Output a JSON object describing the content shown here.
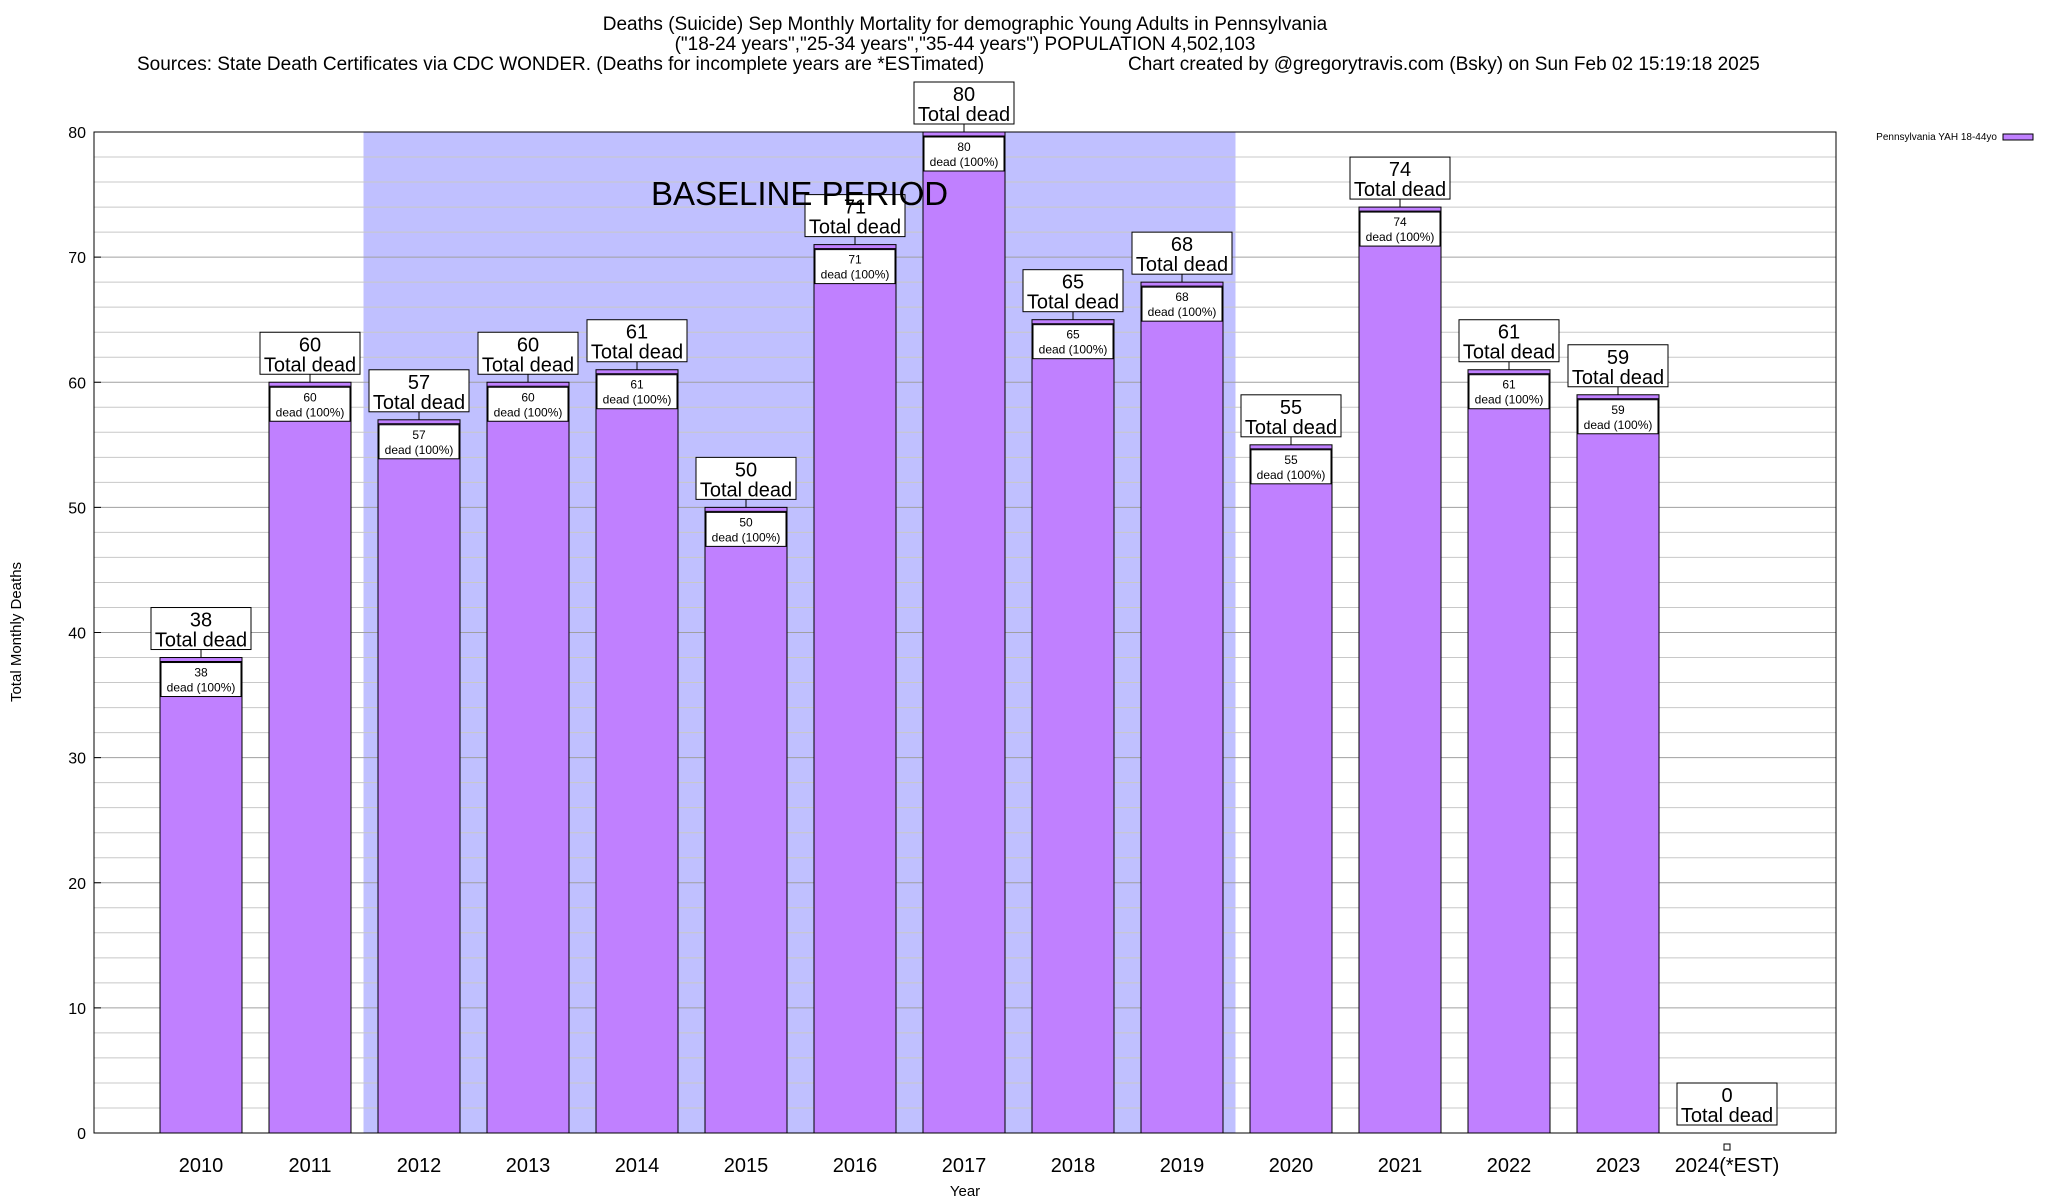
{
  "title": {
    "line1": "Deaths (Suicide) Sep Monthly Mortality for demographic Young Adults in Pennsylvania",
    "line2": "(\"18-24 years\",\"25-34 years\",\"35-44 years\") POPULATION 4,502,103",
    "line3": "Sources: State Death Certificates via CDC WONDER. (Deaths for incomplete years are *ESTimated)",
    "credit": "Chart created by @gregorytravis.com (Bsky) on Sun Feb 02 15:19:18 2025"
  },
  "chart_data": {
    "type": "bar",
    "xlabel": "Year",
    "ylabel": "Total Monthly Deaths",
    "ylim": [
      0,
      80
    ],
    "ytick_step": 10,
    "grid": "horizontal minor lines",
    "categories": [
      "2010",
      "2011",
      "2012",
      "2013",
      "2014",
      "2015",
      "2016",
      "2017",
      "2018",
      "2019",
      "2020",
      "2021",
      "2022",
      "2023",
      "2024(*EST)"
    ],
    "series": [
      {
        "name": "Pennsylvania YAH 18-44yo",
        "color": "#c080ff",
        "values": [
          38,
          60,
          57,
          60,
          61,
          50,
          71,
          80,
          65,
          68,
          55,
          74,
          61,
          59,
          0
        ]
      }
    ],
    "total_label": "Total dead",
    "inner_label_suffix": "dead (100%)",
    "baseline_period": {
      "label": "BASELINE PERIOD",
      "from": "2012",
      "to": "2019",
      "color": "#c0c0ff"
    },
    "legend_position": "top-right"
  }
}
